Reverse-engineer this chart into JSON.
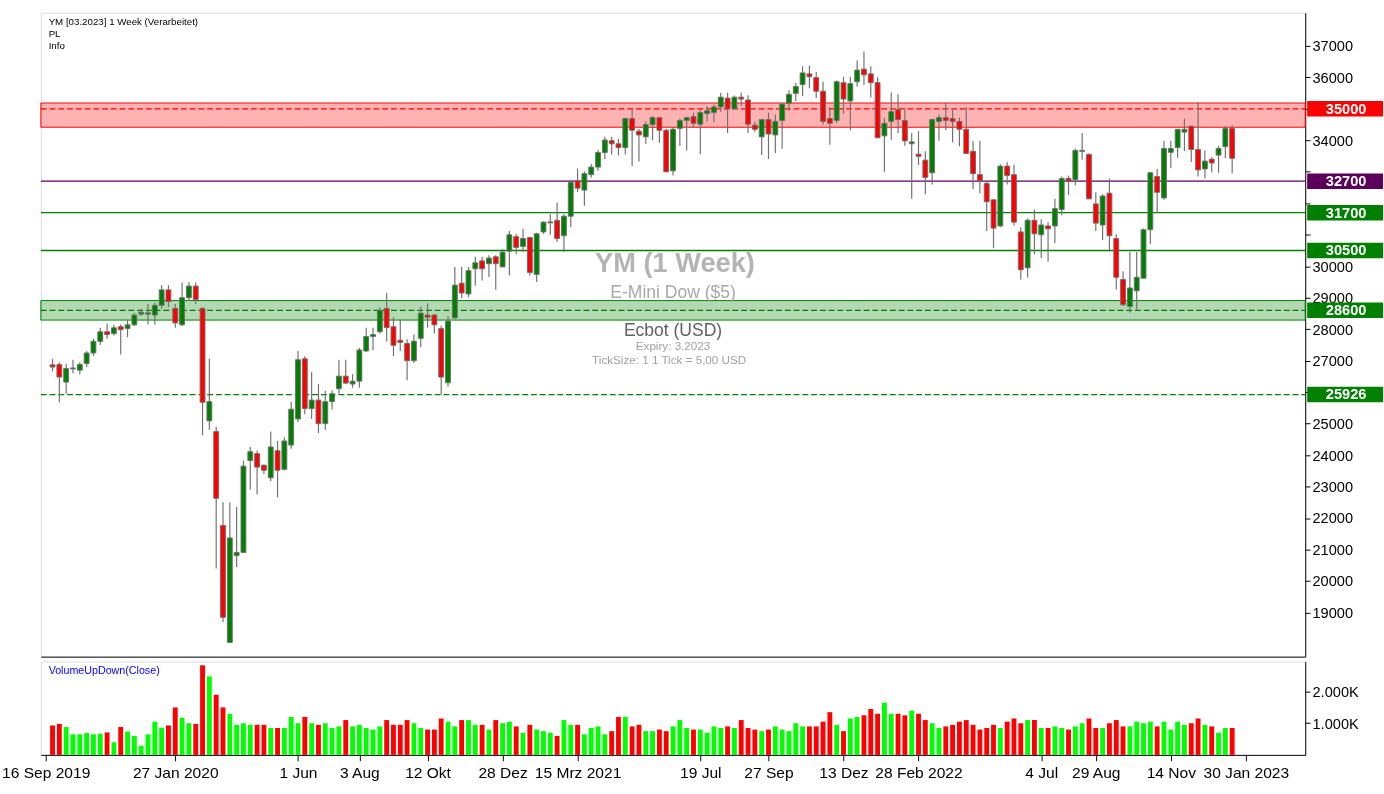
{
  "chart_data": [
    {
      "type": "candlestick",
      "title": "YM [03.2023] 1 Week (Verarbeitet)",
      "annotations": [
        "PL",
        "Info",
        "YM (1 Week)",
        "E-Mini Dow ($5)",
        "Ecbot  (USD)",
        "Expiry: 3.2023",
        "TickSize: 1   1 Tick = 5,00 USD"
      ],
      "x": [
        "2019-09-23",
        "2019-09-30",
        "2019-10-07",
        "2019-10-14",
        "2019-10-21",
        "2019-10-28",
        "2019-11-04",
        "2019-11-11",
        "2019-11-18",
        "2019-11-25",
        "2019-12-02",
        "2019-12-09",
        "2019-12-16",
        "2019-12-23",
        "2019-12-30",
        "2020-01-06",
        "2020-01-13",
        "2020-01-20",
        "2020-01-27",
        "2020-02-03",
        "2020-02-10",
        "2020-02-17",
        "2020-02-24",
        "2020-03-02",
        "2020-03-09",
        "2020-03-16",
        "2020-03-23",
        "2020-03-30",
        "2020-04-06",
        "2020-04-13",
        "2020-04-20",
        "2020-04-27",
        "2020-05-04",
        "2020-05-11",
        "2020-05-18",
        "2020-05-25",
        "2020-06-01",
        "2020-06-08",
        "2020-06-15",
        "2020-06-22",
        "2020-06-29",
        "2020-07-06",
        "2020-07-13",
        "2020-07-20",
        "2020-07-27",
        "2020-08-03",
        "2020-08-10",
        "2020-08-17",
        "2020-08-24",
        "2020-08-31",
        "2020-09-07",
        "2020-09-14",
        "2020-09-21",
        "2020-09-28",
        "2020-10-05",
        "2020-10-12",
        "2020-10-19",
        "2020-10-26",
        "2020-11-02",
        "2020-11-09",
        "2020-11-16",
        "2020-11-23",
        "2020-11-30",
        "2020-12-07",
        "2020-12-14",
        "2020-12-21",
        "2020-12-28",
        "2021-01-04",
        "2021-01-11",
        "2021-01-18",
        "2021-01-25",
        "2021-02-01",
        "2021-02-08",
        "2021-02-15",
        "2021-02-22",
        "2021-03-01",
        "2021-03-08",
        "2021-03-15",
        "2021-03-22",
        "2021-03-29",
        "2021-04-05",
        "2021-04-12",
        "2021-04-19",
        "2021-04-26",
        "2021-05-03",
        "2021-05-10",
        "2021-05-17",
        "2021-05-24",
        "2021-05-31",
        "2021-06-07",
        "2021-06-14",
        "2021-06-21",
        "2021-06-28",
        "2021-07-05",
        "2021-07-12",
        "2021-07-19",
        "2021-07-26",
        "2021-08-02",
        "2021-08-09",
        "2021-08-16",
        "2021-08-23",
        "2021-08-30",
        "2021-09-06",
        "2021-09-13",
        "2021-09-20",
        "2021-09-27",
        "2021-10-04",
        "2021-10-11",
        "2021-10-18",
        "2021-10-25",
        "2021-11-01",
        "2021-11-08",
        "2021-11-15",
        "2021-11-22",
        "2021-11-29",
        "2021-12-06",
        "2021-12-13",
        "2021-12-20",
        "2021-12-27",
        "2022-01-03",
        "2022-01-10",
        "2022-01-17",
        "2022-01-24",
        "2022-01-31",
        "2022-02-07",
        "2022-02-14",
        "2022-02-21",
        "2022-02-28",
        "2022-03-07",
        "2022-03-14",
        "2022-03-21",
        "2022-03-28",
        "2022-04-04",
        "2022-04-11",
        "2022-04-18",
        "2022-04-25",
        "2022-05-02",
        "2022-05-09",
        "2022-05-16",
        "2022-05-23",
        "2022-05-30",
        "2022-06-06",
        "2022-06-13",
        "2022-06-20",
        "2022-06-27",
        "2022-07-04",
        "2022-07-11",
        "2022-07-18",
        "2022-07-25",
        "2022-08-01",
        "2022-08-08",
        "2022-08-15",
        "2022-08-22",
        "2022-08-29",
        "2022-09-05",
        "2022-09-12",
        "2022-09-19",
        "2022-09-26",
        "2022-10-03",
        "2022-10-10",
        "2022-10-17",
        "2022-10-24",
        "2022-10-31",
        "2022-11-07",
        "2022-11-14",
        "2022-11-21",
        "2022-11-28",
        "2022-12-05",
        "2022-12-12",
        "2022-12-19",
        "2022-12-26",
        "2023-01-02",
        "2023-01-09",
        "2023-01-16"
      ],
      "ohlc": [
        [
          26870,
          27060,
          26660,
          26800
        ],
        [
          26880,
          26950,
          25680,
          26480
        ],
        [
          26320,
          26900,
          25950,
          26750
        ],
        [
          26740,
          27030,
          26600,
          26770
        ],
        [
          26700,
          26950,
          26560,
          26880
        ],
        [
          26910,
          27300,
          26800,
          27245
        ],
        [
          27245,
          27700,
          27150,
          27615
        ],
        [
          27615,
          28050,
          27500,
          27920
        ],
        [
          27920,
          28180,
          27700,
          27830
        ],
        [
          27860,
          28130,
          27800,
          28045
        ],
        [
          28080,
          28150,
          27200,
          27985
        ],
        [
          28020,
          28300,
          27750,
          28140
        ],
        [
          28140,
          28520,
          28100,
          28450
        ],
        [
          28480,
          28650,
          28420,
          28540
        ],
        [
          28480,
          28800,
          28150,
          28520
        ],
        [
          28450,
          28850,
          28150,
          28760
        ],
        [
          28760,
          29400,
          28650,
          29250
        ],
        [
          29250,
          29400,
          28700,
          28880
        ],
        [
          28660,
          28800,
          28050,
          28200
        ],
        [
          28140,
          29480,
          28100,
          29000
        ],
        [
          29000,
          29500,
          28900,
          29370
        ],
        [
          29370,
          29480,
          28800,
          28940
        ],
        [
          28660,
          28700,
          24630,
          25680
        ],
        [
          25090,
          27060,
          24810,
          25700
        ],
        [
          24750,
          24900,
          20400,
          22630
        ],
        [
          21770,
          22510,
          18700,
          18850
        ],
        [
          18050,
          22500,
          18050,
          21370
        ],
        [
          20810,
          22350,
          20450,
          20910
        ],
        [
          20910,
          23830,
          20910,
          23650
        ],
        [
          23830,
          24260,
          22910,
          24110
        ],
        [
          24050,
          24150,
          22750,
          23620
        ],
        [
          23680,
          23700,
          23400,
          23520
        ],
        [
          23280,
          24750,
          23180,
          24260
        ],
        [
          24140,
          24450,
          22660,
          23520
        ],
        [
          23550,
          24570,
          23520,
          24450
        ],
        [
          24320,
          25700,
          24200,
          25460
        ],
        [
          25150,
          27310,
          25050,
          27030
        ],
        [
          27060,
          27140,
          25300,
          25480
        ],
        [
          25480,
          26630,
          25150,
          25750
        ],
        [
          25750,
          26260,
          24700,
          25000
        ],
        [
          25000,
          26040,
          24800,
          25700
        ],
        [
          25700,
          26050,
          25450,
          25950
        ],
        [
          26110,
          27030,
          25950,
          26510
        ],
        [
          26510,
          27030,
          26260,
          26290
        ],
        [
          26260,
          26570,
          26140,
          26350
        ],
        [
          26350,
          27400,
          26140,
          27340
        ],
        [
          27310,
          28050,
          27280,
          27770
        ],
        [
          27770,
          28050,
          27340,
          27830
        ],
        [
          27920,
          28690,
          27860,
          28600
        ],
        [
          28660,
          29150,
          27610,
          28050
        ],
        [
          28080,
          28380,
          27150,
          27490
        ],
        [
          27650,
          28300,
          27310,
          27580
        ],
        [
          27550,
          27680,
          26380,
          27000
        ],
        [
          27000,
          27830,
          26930,
          27620
        ],
        [
          27710,
          28720,
          27430,
          28510
        ],
        [
          28450,
          28820,
          28050,
          28380
        ],
        [
          28450,
          28480,
          27860,
          28140
        ],
        [
          28020,
          28110,
          25920,
          26480
        ],
        [
          26300,
          28420,
          26170,
          28260
        ],
        [
          28360,
          29980,
          28330,
          29400
        ],
        [
          29460,
          29980,
          28980,
          29150
        ],
        [
          29120,
          29980,
          29010,
          29860
        ],
        [
          29920,
          30300,
          29380,
          30110
        ],
        [
          30170,
          30300,
          29550,
          29920
        ],
        [
          30080,
          30350,
          29660,
          30260
        ],
        [
          30300,
          30350,
          29250,
          30080
        ],
        [
          29980,
          30540,
          29980,
          30450
        ],
        [
          30480,
          31120,
          29710,
          31000
        ],
        [
          30940,
          31030,
          30390,
          30600
        ],
        [
          30630,
          31180,
          30450,
          30880
        ],
        [
          30910,
          30940,
          29710,
          29800
        ],
        [
          29740,
          31060,
          29500,
          31030
        ],
        [
          31090,
          31430,
          31030,
          31400
        ],
        [
          31380,
          31650,
          31000,
          31410
        ],
        [
          31460,
          32020,
          30770,
          30880
        ],
        [
          30970,
          31650,
          30450,
          31590
        ],
        [
          31590,
          32750,
          31250,
          32660
        ],
        [
          32720,
          33100,
          32360,
          32480
        ],
        [
          32420,
          33010,
          31920,
          32940
        ],
        [
          32910,
          33250,
          32820,
          33150
        ],
        [
          33150,
          33700,
          33030,
          33610
        ],
        [
          33610,
          34110,
          33400,
          34010
        ],
        [
          33990,
          34110,
          33550,
          33890
        ],
        [
          33890,
          34050,
          33520,
          33770
        ],
        [
          33770,
          34720,
          33550,
          34690
        ],
        [
          34690,
          34970,
          33180,
          34320
        ],
        [
          34290,
          34360,
          33330,
          34170
        ],
        [
          34110,
          34600,
          33880,
          34500
        ],
        [
          34500,
          34770,
          34000,
          34720
        ],
        [
          34720,
          34750,
          33920,
          34320
        ],
        [
          34320,
          34370,
          33000,
          33000
        ],
        [
          33030,
          34410,
          32880,
          34350
        ],
        [
          34380,
          34690,
          33830,
          34630
        ],
        [
          34630,
          34750,
          33680,
          34720
        ],
        [
          34750,
          34880,
          34400,
          34540
        ],
        [
          34510,
          34970,
          33560,
          34880
        ],
        [
          34850,
          35080,
          34600,
          34940
        ],
        [
          34880,
          35140,
          34570,
          35060
        ],
        [
          35060,
          35510,
          34910,
          35370
        ],
        [
          35340,
          35510,
          34230,
          35000
        ],
        [
          35000,
          35420,
          34970,
          35370
        ],
        [
          35370,
          35510,
          35090,
          35310
        ],
        [
          35280,
          35430,
          34230,
          34510
        ],
        [
          34480,
          34600,
          34260,
          34350
        ],
        [
          34110,
          34660,
          33530,
          34660
        ],
        [
          34660,
          34880,
          33410,
          34200
        ],
        [
          34170,
          34820,
          33600,
          34600
        ],
        [
          34630,
          35180,
          33730,
          35150
        ],
        [
          35180,
          35590,
          34940,
          35460
        ],
        [
          35490,
          35820,
          35250,
          35710
        ],
        [
          35770,
          36350,
          35400,
          36140
        ],
        [
          36110,
          36380,
          35650,
          36020
        ],
        [
          35990,
          36170,
          35340,
          35560
        ],
        [
          35560,
          35860,
          34500,
          34600
        ],
        [
          34690,
          35050,
          33860,
          34540
        ],
        [
          34630,
          35900,
          34540,
          35860
        ],
        [
          35830,
          36020,
          34840,
          35310
        ],
        [
          35250,
          36020,
          34320,
          35800
        ],
        [
          35860,
          36540,
          35700,
          36230
        ],
        [
          36260,
          36820,
          35760,
          36080
        ],
        [
          36110,
          36350,
          35360,
          35830
        ],
        [
          35830,
          36000,
          34080,
          34080
        ],
        [
          34140,
          34720,
          33000,
          34540
        ],
        [
          34600,
          35520,
          34020,
          34910
        ],
        [
          34970,
          35460,
          34230,
          34660
        ],
        [
          34630,
          35030,
          33830,
          33980
        ],
        [
          33890,
          34230,
          32140,
          33950
        ],
        [
          33560,
          34290,
          33220,
          33490
        ],
        [
          33370,
          33650,
          32290,
          32820
        ],
        [
          32970,
          34690,
          32600,
          34660
        ],
        [
          34600,
          34820,
          33990,
          34720
        ],
        [
          34720,
          35210,
          34330,
          34630
        ],
        [
          34690,
          34970,
          33930,
          34600
        ],
        [
          34600,
          34720,
          33810,
          34350
        ],
        [
          34350,
          35050,
          33580,
          33580
        ],
        [
          33650,
          33980,
          32450,
          32940
        ],
        [
          32910,
          33990,
          32320,
          32720
        ],
        [
          32630,
          32690,
          31120,
          32050
        ],
        [
          32110,
          32130,
          30570,
          31210
        ],
        [
          31280,
          33240,
          31240,
          33180
        ],
        [
          33180,
          33300,
          32600,
          32880
        ],
        [
          32910,
          33220,
          31290,
          31400
        ],
        [
          31090,
          31240,
          29580,
          29890
        ],
        [
          29950,
          31520,
          29640,
          31460
        ],
        [
          31460,
          31800,
          30380,
          31030
        ],
        [
          31000,
          31490,
          30260,
          31310
        ],
        [
          31280,
          31400,
          30140,
          31190
        ],
        [
          31280,
          32140,
          30740,
          31830
        ],
        [
          31800,
          32850,
          31620,
          32790
        ],
        [
          32790,
          32880,
          32260,
          32700
        ],
        [
          32750,
          33740,
          32570,
          33680
        ],
        [
          33650,
          34230,
          33380,
          33680
        ],
        [
          33550,
          33590,
          32140,
          32140
        ],
        [
          31980,
          32350,
          31120,
          31370
        ],
        [
          31310,
          32290,
          30830,
          32230
        ],
        [
          32320,
          32780,
          30460,
          30970
        ],
        [
          30880,
          31020,
          29260,
          29650
        ],
        [
          29580,
          29840,
          28740,
          28780
        ],
        [
          28720,
          30450,
          28530,
          29310
        ],
        [
          29220,
          30450,
          28620,
          29650
        ],
        [
          29620,
          31200,
          29620,
          31160
        ],
        [
          31160,
          33000,
          30710,
          32970
        ],
        [
          32850,
          33090,
          31690,
          32350
        ],
        [
          32170,
          33990,
          32110,
          33740
        ],
        [
          33620,
          33990,
          33110,
          33740
        ],
        [
          33770,
          34350,
          33450,
          34350
        ],
        [
          34260,
          34690,
          33660,
          34350
        ],
        [
          34450,
          34450,
          33310,
          33710
        ],
        [
          33710,
          35220,
          32850,
          33060
        ],
        [
          33090,
          33680,
          32790,
          33340
        ],
        [
          33400,
          33460,
          32980,
          33280
        ],
        [
          33530,
          33830,
          32970,
          33740
        ],
        [
          33800,
          34450,
          33440,
          34380
        ],
        [
          34380,
          34480,
          32950,
          33430
        ]
      ],
      "xlim": [
        "2019-09-16",
        "2023-03-27"
      ],
      "ylim": [
        17600,
        38050
      ],
      "yticks": [
        19000,
        20000,
        21000,
        22000,
        23000,
        24000,
        25000,
        {
          "value": 26000,
          "label": null
        },
        27000,
        28000,
        29000,
        30000,
        {
          "value": 31000,
          "label": null
        },
        {
          "value": 32000,
          "label": null
        },
        {
          "value": 33000,
          "label": null
        },
        34000,
        {
          "value": 35000,
          "label": null
        },
        36000,
        37000
      ],
      "tick_labels": "y",
      "bands": [
        {
          "axis": "y",
          "from": 34415,
          "to": 35185,
          "color": "#ff0000"
        },
        {
          "axis": "y",
          "from": 28290,
          "to": 28910,
          "color": "#008000"
        }
      ],
      "ref_lines": [
        {
          "axis": "y",
          "value": 35000,
          "label": "35000",
          "color": "#ff0000",
          "line_style": "dashed"
        },
        {
          "axis": "y",
          "value": 32700,
          "label": "32700",
          "color": "#5a005a",
          "line_style": "solid"
        },
        {
          "axis": "y",
          "value": 31700,
          "label": "31700",
          "color": "#008000",
          "line_style": "solid"
        },
        {
          "axis": "y",
          "value": 30500,
          "label": "30500",
          "color": "#008000",
          "line_style": "solid"
        },
        {
          "axis": "y",
          "value": 28600,
          "label": "28600",
          "color": "#008000",
          "line_style": "dashed"
        },
        {
          "axis": "y",
          "value": 25926,
          "label": "25926",
          "color": "#008000",
          "line_style": "dashed"
        }
      ]
    },
    {
      "type": "bar",
      "title": "VolumeUpDown(Close)",
      "x": [
        "2019-09-23",
        "2019-09-30",
        "2019-10-07",
        "2019-10-14",
        "2019-10-21",
        "2019-10-28",
        "2019-11-04",
        "2019-11-11",
        "2019-11-18",
        "2019-11-25",
        "2019-12-02",
        "2019-12-09",
        "2019-12-16",
        "2019-12-23",
        "2019-12-30",
        "2020-01-06",
        "2020-01-13",
        "2020-01-20",
        "2020-01-27",
        "2020-02-03",
        "2020-02-10",
        "2020-02-17",
        "2020-02-24",
        "2020-03-02",
        "2020-03-09",
        "2020-03-16",
        "2020-03-23",
        "2020-03-30",
        "2020-04-06",
        "2020-04-13",
        "2020-04-20",
        "2020-04-27",
        "2020-05-04",
        "2020-05-11",
        "2020-05-18",
        "2020-05-25",
        "2020-06-01",
        "2020-06-08",
        "2020-06-15",
        "2020-06-22",
        "2020-06-29",
        "2020-07-06",
        "2020-07-13",
        "2020-07-20",
        "2020-07-27",
        "2020-08-03",
        "2020-08-10",
        "2020-08-17",
        "2020-08-24",
        "2020-08-31",
        "2020-09-07",
        "2020-09-14",
        "2020-09-21",
        "2020-09-28",
        "2020-10-05",
        "2020-10-12",
        "2020-10-19",
        "2020-10-26",
        "2020-11-02",
        "2020-11-09",
        "2020-11-16",
        "2020-11-23",
        "2020-11-30",
        "2020-12-07",
        "2020-12-14",
        "2020-12-21",
        "2020-12-28",
        "2021-01-04",
        "2021-01-11",
        "2021-01-18",
        "2021-01-25",
        "2021-02-01",
        "2021-02-08",
        "2021-02-15",
        "2021-02-22",
        "2021-03-01",
        "2021-03-08",
        "2021-03-15",
        "2021-03-22",
        "2021-03-29",
        "2021-04-05",
        "2021-04-12",
        "2021-04-19",
        "2021-04-26",
        "2021-05-03",
        "2021-05-10",
        "2021-05-17",
        "2021-05-24",
        "2021-05-31",
        "2021-06-07",
        "2021-06-14",
        "2021-06-21",
        "2021-06-28",
        "2021-07-05",
        "2021-07-12",
        "2021-07-19",
        "2021-07-26",
        "2021-08-02",
        "2021-08-09",
        "2021-08-16",
        "2021-08-23",
        "2021-08-30",
        "2021-09-06",
        "2021-09-13",
        "2021-09-20",
        "2021-09-27",
        "2021-10-04",
        "2021-10-11",
        "2021-10-18",
        "2021-10-25",
        "2021-11-01",
        "2021-11-08",
        "2021-11-15",
        "2021-11-22",
        "2021-11-29",
        "2021-12-06",
        "2021-12-13",
        "2021-12-20",
        "2021-12-27",
        "2022-01-03",
        "2022-01-10",
        "2022-01-17",
        "2022-01-24",
        "2022-01-31",
        "2022-02-07",
        "2022-02-14",
        "2022-02-21",
        "2022-02-28",
        "2022-03-07",
        "2022-03-14",
        "2022-03-21",
        "2022-03-28",
        "2022-04-04",
        "2022-04-11",
        "2022-04-18",
        "2022-04-25",
        "2022-05-02",
        "2022-05-09",
        "2022-05-16",
        "2022-05-23",
        "2022-05-30",
        "2022-06-06",
        "2022-06-13",
        "2022-06-20",
        "2022-06-27",
        "2022-07-04",
        "2022-07-11",
        "2022-07-18",
        "2022-07-25",
        "2022-08-01",
        "2022-08-08",
        "2022-08-15",
        "2022-08-22",
        "2022-08-29",
        "2022-09-05",
        "2022-09-12",
        "2022-09-19",
        "2022-09-26",
        "2022-10-03",
        "2022-10-10",
        "2022-10-17",
        "2022-10-24",
        "2022-10-31",
        "2022-11-07",
        "2022-11-14",
        "2022-11-21",
        "2022-11-28",
        "2022-12-05",
        "2022-12-12",
        "2022-12-19",
        "2022-12-26",
        "2023-01-02",
        "2023-01-09",
        "2023-01-16"
      ],
      "values": [
        0.93,
        0.98,
        0.88,
        0.65,
        0.65,
        0.69,
        0.65,
        0.67,
        0.71,
        0.4,
        0.88,
        0.74,
        0.6,
        0.29,
        0.65,
        1.05,
        0.86,
        0.93,
        1.5,
        1.17,
        1.0,
        0.98,
        2.83,
        2.48,
        1.9,
        1.5,
        1.3,
        0.95,
        1.0,
        0.95,
        0.95,
        0.95,
        0.85,
        0.85,
        0.85,
        1.2,
        1.0,
        1.2,
        1.0,
        0.95,
        1.0,
        0.85,
        0.9,
        1.1,
        0.9,
        0.95,
        0.85,
        0.8,
        0.9,
        1.1,
        0.95,
        0.95,
        1.1,
        1.0,
        0.85,
        0.8,
        0.8,
        1.15,
        1.05,
        0.9,
        1.1,
        1.1,
        0.95,
        0.95,
        0.8,
        1.1,
        1.0,
        1.05,
        0.9,
        0.7,
        0.95,
        0.8,
        0.75,
        0.7,
        0.6,
        1.1,
        0.95,
        0.95,
        0.65,
        0.85,
        0.9,
        0.65,
        0.75,
        1.2,
        1.2,
        0.9,
        0.95,
        0.75,
        0.75,
        0.8,
        0.75,
        0.9,
        1.1,
        0.85,
        0.8,
        0.8,
        0.7,
        0.9,
        0.85,
        0.9,
        0.85,
        1.1,
        0.85,
        0.8,
        0.75,
        0.8,
        0.9,
        0.8,
        0.75,
        1.0,
        0.9,
        0.9,
        0.9,
        1.05,
        1.35,
        0.95,
        0.75,
        1.15,
        1.2,
        1.25,
        1.45,
        1.3,
        1.65,
        1.3,
        1.3,
        1.25,
        1.4,
        1.3,
        1.1,
        1.0,
        0.85,
        0.9,
        0.95,
        1.05,
        1.1,
        0.95,
        0.8,
        0.85,
        0.95,
        0.85,
        1.05,
        1.15,
        1.0,
        1.1,
        1.1,
        0.85,
        0.85,
        0.9,
        0.85,
        0.8,
        0.9,
        1.0,
        1.15,
        0.85,
        0.85,
        1.0,
        1.1,
        0.9,
        0.9,
        1.05,
        1.0,
        1.05,
        0.9,
        1.05,
        0.8,
        1.05,
        0.95,
        1.0,
        1.15,
        0.95,
        0.9,
        0.7,
        0.85,
        0.85
      ],
      "colors": [
        "#ff0000",
        "#ff0000",
        "#00ff00",
        "#00ff00",
        "#00ff00",
        "#00ff00",
        "#00ff00",
        "#00ff00",
        "#ff0000",
        "#00ff00",
        "#ff0000",
        "#00ff00",
        "#00ff00",
        "#00ff00",
        "#00ff00",
        "#00ff00",
        "#00ff00",
        "#ff0000",
        "#ff0000",
        "#00ff00",
        "#00ff00",
        "#ff0000",
        "#ff0000",
        "#00ff00",
        "#ff0000",
        "#ff0000",
        "#00ff00",
        "#00ff00",
        "#00ff00",
        "#00ff00",
        "#ff0000",
        "#ff0000",
        "#00ff00",
        "#ff0000",
        "#00ff00",
        "#00ff00",
        "#00ff00",
        "#ff0000",
        "#00ff00",
        "#ff0000",
        "#00ff00",
        "#00ff00",
        "#00ff00",
        "#ff0000",
        "#00ff00",
        "#00ff00",
        "#00ff00",
        "#00ff00",
        "#00ff00",
        "#ff0000",
        "#ff0000",
        "#ff0000",
        "#ff0000",
        "#00ff00",
        "#00ff00",
        "#ff0000",
        "#ff0000",
        "#ff0000",
        "#00ff00",
        "#00ff00",
        "#ff0000",
        "#00ff00",
        "#00ff00",
        "#ff0000",
        "#00ff00",
        "#ff0000",
        "#00ff00",
        "#00ff00",
        "#ff0000",
        "#00ff00",
        "#ff0000",
        "#00ff00",
        "#00ff00",
        "#00ff00",
        "#ff0000",
        "#00ff00",
        "#00ff00",
        "#ff0000",
        "#00ff00",
        "#00ff00",
        "#00ff00",
        "#00ff00",
        "#ff0000",
        "#ff0000",
        "#00ff00",
        "#ff0000",
        "#ff0000",
        "#00ff00",
        "#00ff00",
        "#ff0000",
        "#ff0000",
        "#00ff00",
        "#00ff00",
        "#00ff00",
        "#ff0000",
        "#00ff00",
        "#00ff00",
        "#00ff00",
        "#00ff00",
        "#ff0000",
        "#00ff00",
        "#ff0000",
        "#ff0000",
        "#ff0000",
        "#00ff00",
        "#ff0000",
        "#00ff00",
        "#00ff00",
        "#00ff00",
        "#00ff00",
        "#00ff00",
        "#ff0000",
        "#ff0000",
        "#ff0000",
        "#ff0000",
        "#00ff00",
        "#ff0000",
        "#00ff00",
        "#00ff00",
        "#ff0000",
        "#ff0000",
        "#ff0000",
        "#00ff00",
        "#00ff00",
        "#ff0000",
        "#ff0000",
        "#00ff00",
        "#ff0000",
        "#ff0000",
        "#00ff00",
        "#00ff00",
        "#ff0000",
        "#ff0000",
        "#ff0000",
        "#ff0000",
        "#ff0000",
        "#ff0000",
        "#ff0000",
        "#ff0000",
        "#00ff00",
        "#ff0000",
        "#ff0000",
        "#ff0000",
        "#00ff00",
        "#ff0000",
        "#00ff00",
        "#ff0000",
        "#00ff00",
        "#00ff00",
        "#ff0000",
        "#00ff00",
        "#00ff00",
        "#ff0000",
        "#ff0000",
        "#00ff00",
        "#ff0000",
        "#ff0000",
        "#ff0000",
        "#00ff00",
        "#00ff00",
        "#00ff00",
        "#00ff00",
        "#ff0000",
        "#00ff00",
        "#00ff00",
        "#00ff00",
        "#00ff00",
        "#ff0000",
        "#ff0000",
        "#00ff00",
        "#ff0000",
        "#00ff00",
        "#00ff00",
        "#ff0000"
      ],
      "xlim": [
        "2019-09-16",
        "2023-03-27"
      ],
      "xticks": [
        {
          "value": "2019-09-16",
          "label": "16 Sep 2019"
        },
        {
          "value": "2020-01-27",
          "label": "27 Jan 2020"
        },
        {
          "value": "2020-06-01",
          "label": "1 Jun"
        },
        {
          "value": "2020-08-03",
          "label": "3 Aug"
        },
        {
          "value": "2020-10-12",
          "label": "12 Okt"
        },
        {
          "value": "2020-12-28",
          "label": "28 Dez"
        },
        {
          "value": "2021-03-15",
          "label": "15 Mrz 2021"
        },
        {
          "value": "2021-07-19",
          "label": "19 Jul"
        },
        {
          "value": "2021-09-27",
          "label": "27 Sep"
        },
        {
          "value": "2021-12-13",
          "label": "13 Dez"
        },
        {
          "value": "2022-02-28",
          "label": "28 Feb 2022"
        },
        {
          "value": "2022-07-04",
          "label": "4 Jul"
        },
        {
          "value": "2022-08-29",
          "label": "29 Aug"
        },
        {
          "value": "2022-11-14",
          "label": "14 Nov"
        },
        {
          "value": "2023-01-30",
          "label": "30 Jan 2023"
        }
      ],
      "ylim": [
        0,
        2.95
      ],
      "yticks": [
        {
          "value": 1,
          "label": "1.000K"
        },
        {
          "value": 2,
          "label": "2.000K"
        }
      ]
    }
  ]
}
